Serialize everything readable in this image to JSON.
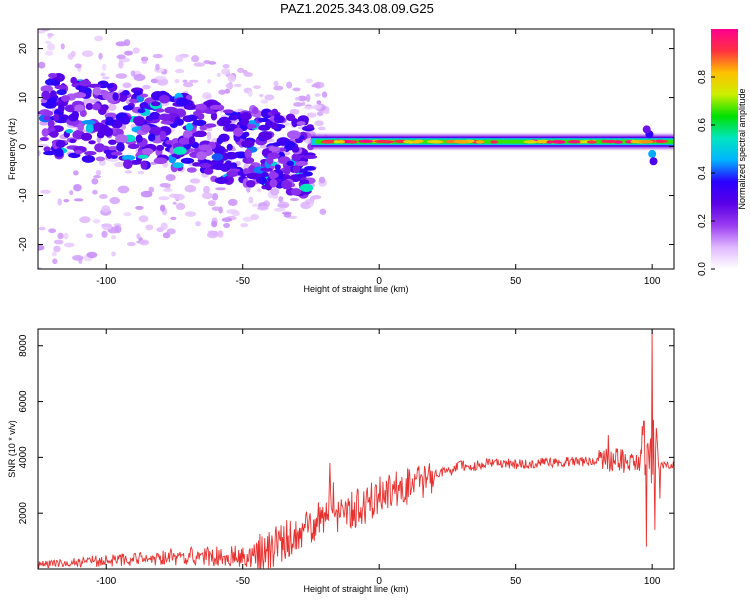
{
  "chart_data": [
    {
      "type": "heatmap",
      "title": "PAZ1.2025.343.08.09.G25",
      "xlabel": "Height of straight line (km)",
      "ylabel": "Frequency (Hz)",
      "xlim": [
        -125,
        108
      ],
      "ylim": [
        -25,
        24
      ],
      "xticks": [
        -100,
        -50,
        0,
        50,
        100
      ],
      "xtick_labels": [
        "-100",
        "-50",
        "0",
        "50",
        "100"
      ],
      "yticks": [
        20,
        10,
        0,
        -10,
        -20
      ],
      "ytick_labels": [
        "20",
        "10",
        "0",
        "-10",
        "-20"
      ],
      "colorbar": {
        "label": "Normalized spectral amplitude",
        "range": [
          0,
          1
        ],
        "ticks": [
          0.0,
          0.2,
          0.4,
          0.6,
          0.8
        ],
        "tick_labels": [
          "0.0",
          "0.2",
          "0.4",
          "0.6",
          "0.8"
        ],
        "colormap": [
          "#ffffff",
          "#e0b8ff",
          "#9a3cf0",
          "#5a00e6",
          "#2a00ff",
          "#00b4ff",
          "#00e6c0",
          "#00e000",
          "#ccf000",
          "#ffc000",
          "#ff3040",
          "#ff0090"
        ]
      },
      "features": {
        "carrier_freq_hz": 1,
        "carrier_start_km": -25,
        "carrier_end_km": 108,
        "scatter_region_km": [
          -125,
          -25
        ],
        "scatter_spread_hz": [
          -20,
          20
        ]
      }
    },
    {
      "type": "line",
      "xlabel": "Height of straight line (km)",
      "ylabel": "SNR (10 * v/v)",
      "xlim": [
        -125,
        108
      ],
      "ylim": [
        0,
        8600
      ],
      "xticks": [
        -100,
        -50,
        0,
        50,
        100
      ],
      "xtick_labels": [
        "-100",
        "-50",
        "0",
        "50",
        "100"
      ],
      "yticks": [
        2000,
        4000,
        6000,
        8000
      ],
      "ytick_labels": [
        "2000",
        "4000",
        "6000",
        "8000"
      ],
      "color": "#e8312f",
      "series": [
        {
          "name": "SNR",
          "x": [
            -125,
            -110,
            -100,
            -90,
            -80,
            -70,
            -60,
            -50,
            -45,
            -40,
            -35,
            -30,
            -25,
            -20,
            -17,
            -15,
            -10,
            -5,
            0,
            5,
            10,
            15,
            20,
            25,
            30,
            35,
            40,
            45,
            50,
            60,
            70,
            80,
            85,
            90,
            95,
            97,
            99,
            100,
            101,
            102,
            103,
            108
          ],
          "values": [
            150,
            250,
            300,
            350,
            420,
            450,
            420,
            450,
            520,
            700,
            1000,
            1300,
            1600,
            2000,
            2600,
            1800,
            2100,
            2300,
            2700,
            2900,
            2900,
            3100,
            3400,
            3500,
            3700,
            3700,
            3800,
            3800,
            3750,
            3800,
            3850,
            3850,
            3900,
            3850,
            3850,
            4200,
            3500,
            3900,
            4600,
            3700,
            3700,
            3700
          ],
          "spikes": [
            {
              "x": -18,
              "value": 3800
            },
            {
              "x": 84,
              "value": 4800
            },
            {
              "x": 97,
              "value": 5300
            },
            {
              "x": 98,
              "value": 800
            },
            {
              "x": 100,
              "value": 8600
            },
            {
              "x": 101,
              "value": 1400
            }
          ]
        }
      ]
    }
  ]
}
